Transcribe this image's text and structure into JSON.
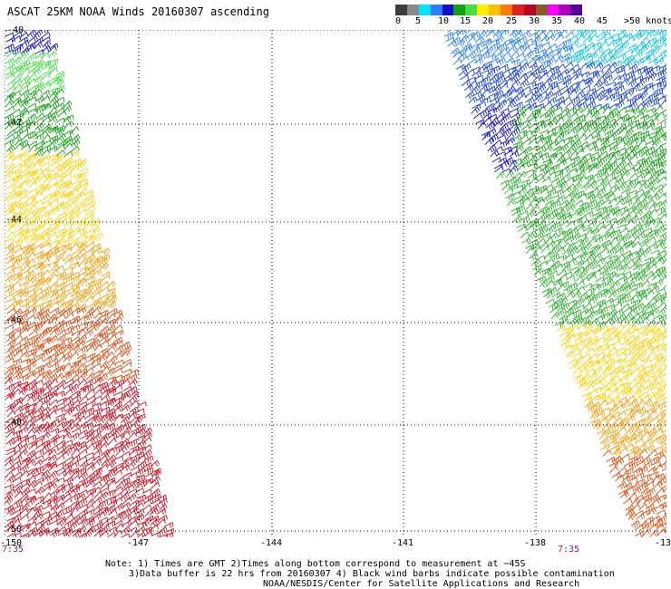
{
  "title": "ASCAT 25KM NOAA Winds 20160307 ascending",
  "colorbar": {
    "colors": [
      "#3c3c3c",
      "#8a8a8a",
      "#00e5ff",
      "#2b7fff",
      "#1010d0",
      "#14a014",
      "#40e040",
      "#ffee00",
      "#ffc000",
      "#ff7a00",
      "#e02020",
      "#c00020",
      "#8b5a2b",
      "#ff00ff",
      "#b000c0",
      "#5a00a0",
      "#ffffff"
    ],
    "labels": [
      "0",
      "5",
      "10",
      "15",
      "20",
      "25",
      "30",
      "35",
      "40",
      "45",
      ">50 knots"
    ]
  },
  "map": {
    "lon_labels": [
      "-150",
      "-147",
      "-144",
      "-141",
      "-138",
      "-13"
    ],
    "lat_labels": [
      "-40",
      "-42",
      "-44",
      "-46",
      "-48",
      "-50"
    ],
    "time_labels": [
      "7:35",
      "7:35"
    ]
  },
  "notes": {
    "line1": "Note: 1) Times are GMT 2)Times along bottom correspond to measurement at −45S",
    "line2": "3)Data buffer is 22 hrs from 20160307 4) Black wind barbs indicate possible contamination",
    "line3": "NOAA/NESDIS/Center for Satellite Applications and Research"
  }
}
